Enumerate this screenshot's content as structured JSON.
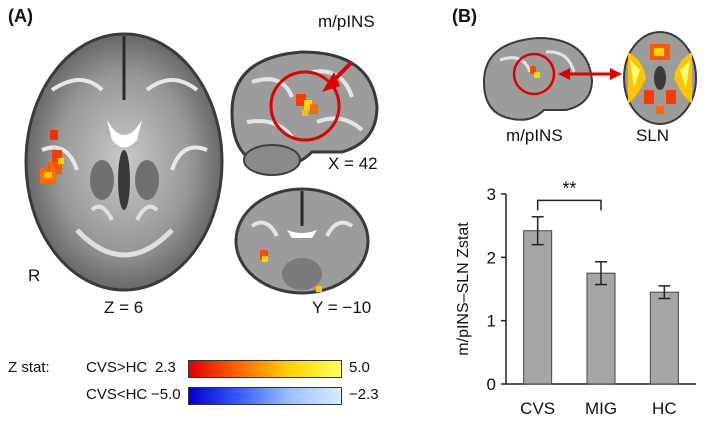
{
  "panel_a": {
    "label": "(A)",
    "axial_coord": "Z = 6",
    "sagittal_coord": "X = 42",
    "coronal_coord": "Y = −10",
    "side_label": "R",
    "roi_label": "m/pINS"
  },
  "panel_b": {
    "label": "(B)",
    "roi_label": "m/pINS",
    "network_label": "SLN"
  },
  "colorbar": {
    "title": "Z stat:",
    "pos_label": "CVS>HC",
    "pos_min": "2.3",
    "pos_max": "5.0",
    "neg_label": "CVS<HC",
    "neg_min": "−5.0",
    "neg_max": "−2.3",
    "pos_colors": [
      "#e00000",
      "#ff6a00",
      "#ffd400",
      "#ffff60"
    ],
    "neg_colors": [
      "#0000cc",
      "#3a5cff",
      "#9cc0ff",
      "#d8ecff"
    ]
  },
  "chart_data": {
    "type": "bar",
    "categories": [
      "CVS",
      "MIG",
      "HC"
    ],
    "values": [
      2.42,
      1.75,
      1.45
    ],
    "errors": [
      0.22,
      0.18,
      0.1
    ],
    "ylabel": "m/pINS–SLN Zstat",
    "ylim": [
      0,
      3
    ],
    "yticks": [
      "0",
      "1",
      "2",
      "3"
    ],
    "significance": {
      "from": "CVS",
      "to": "MIG",
      "label": "**"
    },
    "bar_color": "#a6a6a6"
  }
}
